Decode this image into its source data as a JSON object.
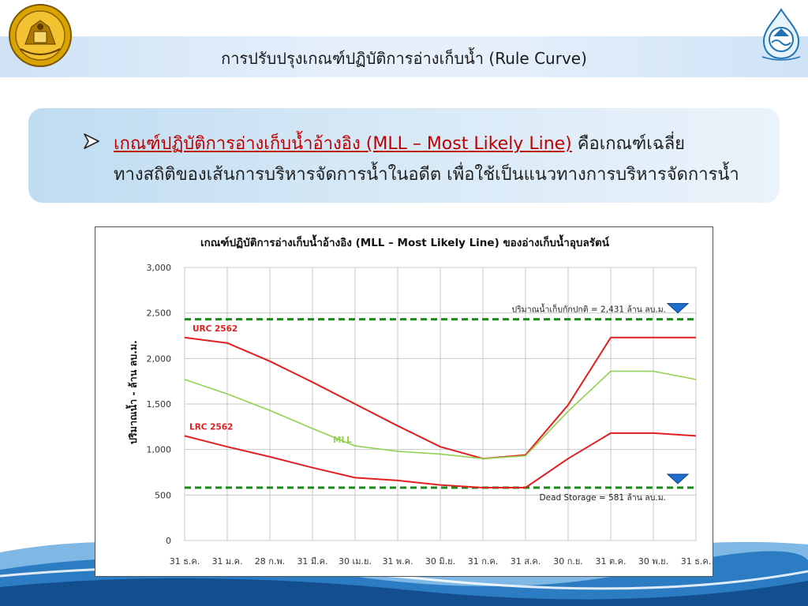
{
  "slide": {
    "title": "การปรับปรุงเกณฑ์ปฏิบัติการอ่างเก็บน้ำ (Rule Curve)"
  },
  "callout": {
    "bullet_icon": "arrow-bullet-icon",
    "highlight": "เกณฑ์ปฏิบัติการอ่างเก็บน้ำอ้างอิง (MLL – Most Likely Line)",
    "line1_rest": " คือเกณฑ์เฉลี่ย",
    "line2": "ทางสถิติของเส้นการบริหารจัดการน้ำในอดีต เพื่อใช้เป็นแนวทางการบริหารจัดการน้ำ"
  },
  "logos": {
    "left": "government-seal-icon",
    "right": "water-department-logo-icon"
  },
  "chart_data": {
    "type": "line",
    "title": "เกณฑ์ปฏิบัติการอ่างเก็บน้ำอ้างอิง (MLL – Most Likely Line) ของอ่างเก็บน้ำอุบลรัตน์",
    "xlabel": "",
    "ylabel": "ปริมาณน้ำ - ล้าน ลบ.ม.",
    "categories": [
      "31 ธ.ค.",
      "31 ม.ค.",
      "28 ก.พ.",
      "31 มี.ค.",
      "30 เม.ย.",
      "31 พ.ค.",
      "30 มิ.ย.",
      "31 ก.ค.",
      "31 ส.ค.",
      "30 ก.ย.",
      "31 ต.ค.",
      "30 พ.ย.",
      "31 ธ.ค."
    ],
    "ylim": [
      0,
      3000
    ],
    "yticks": [
      0,
      500,
      1000,
      1500,
      2000,
      2500,
      3000
    ],
    "ytick_labels": [
      "0",
      "500",
      "1,000",
      "1,500",
      "2,000",
      "2,500",
      "3,000"
    ],
    "grid": true,
    "series": [
      {
        "name": "URC 2562",
        "color": "#e02020",
        "values": [
          2230,
          2170,
          1970,
          1740,
          1500,
          1260,
          1030,
          900,
          940,
          1490,
          2230,
          2230,
          2230
        ]
      },
      {
        "name": "MLL",
        "color": "#92d050",
        "values": [
          1770,
          1610,
          1430,
          1230,
          1040,
          980,
          950,
          900,
          930,
          1420,
          1860,
          1860,
          1770
        ]
      },
      {
        "name": "LRC 2562",
        "color": "#e02020",
        "values": [
          1150,
          1030,
          920,
          800,
          690,
          660,
          610,
          581,
          581,
          900,
          1180,
          1180,
          1150
        ]
      }
    ],
    "series_label_positions": [
      "upper-left",
      "middle-left",
      "left"
    ],
    "reference_lines": [
      {
        "value": 2431,
        "label": "ปริมาณน้ำเก็บกักปกติ = 2,431 ล้าน ลบ.ม.",
        "color": "#1a8a1a"
      },
      {
        "value": 581,
        "label": "Dead Storage = 581 ล้าน ลบ.ม.",
        "color": "#1a8a1a"
      }
    ],
    "marker_icon": "water-level-triangle-icon",
    "marker_color": "#1f6fd0"
  }
}
